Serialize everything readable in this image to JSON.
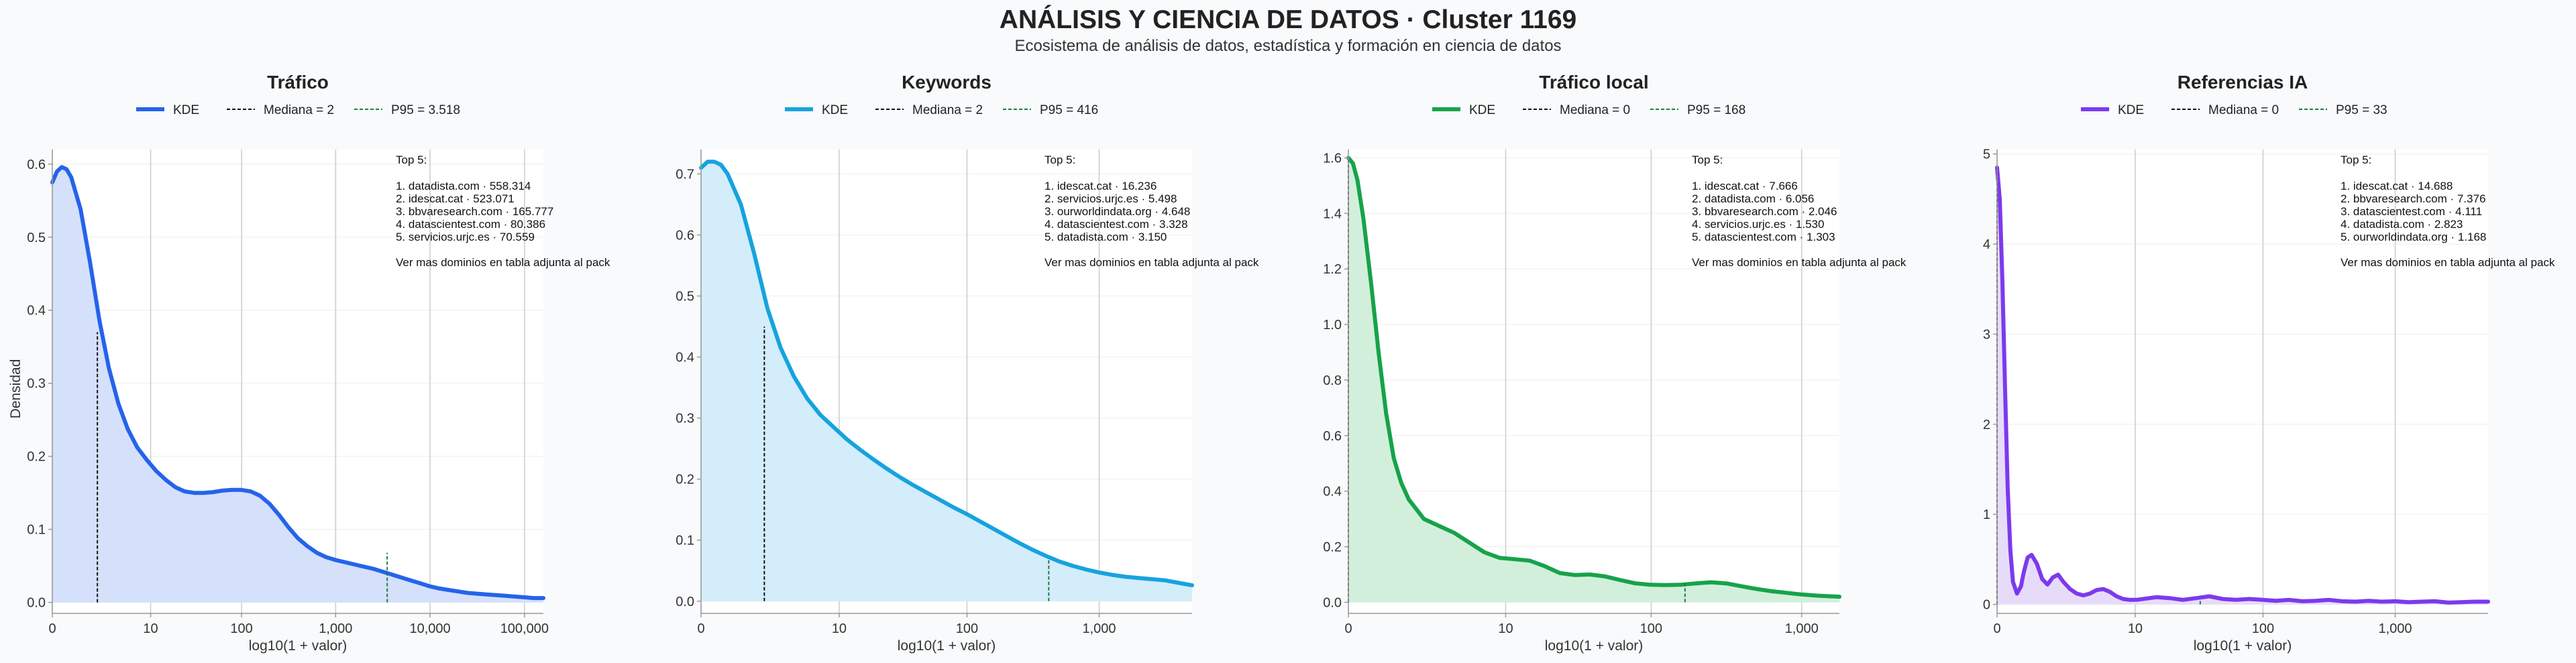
{
  "title": "ANÁLISIS Y CIENCIA DE DATOS · Cluster 1169",
  "subtitle": "Ecosistema de análisis de datos, estadística y formación en ciencia de datos",
  "ylabel": "Densidad",
  "colors": {
    "median": "#111111",
    "p95": "#15803d",
    "grid": "#cfcfcf",
    "axis": "#9a9a9a"
  },
  "chart_data": [
    {
      "type": "area",
      "title": "Tráfico",
      "color": "#2563eb",
      "fill": "#d5e0fb",
      "legend": [
        "KDE",
        "Mediana = 2",
        "P95 = 3.518"
      ],
      "xlabel": "log10(1 + valor)",
      "xlim": [
        0,
        5.2
      ],
      "ylim": [
        -0.015,
        0.62
      ],
      "yticks": [
        0.0,
        0.1,
        0.2,
        0.3,
        0.4,
        0.5,
        0.6
      ],
      "ytick_labels": [
        "0.0",
        "0.1",
        "0.2",
        "0.3",
        "0.4",
        "0.5",
        "0.6"
      ],
      "xticks": [
        0,
        1.041,
        2.004,
        3.0,
        4.0,
        5.0
      ],
      "xtick_labels": [
        "0",
        "10",
        "100",
        "1,000",
        "10,000",
        "100,000"
      ],
      "median_x": 0.477,
      "median_y": 0.37,
      "p95_x": 3.546,
      "p95_y": 0.068,
      "kde_x": [
        0,
        0.05,
        0.1,
        0.15,
        0.2,
        0.3,
        0.4,
        0.5,
        0.6,
        0.7,
        0.8,
        0.9,
        1.0,
        1.1,
        1.2,
        1.3,
        1.4,
        1.5,
        1.6,
        1.7,
        1.8,
        1.9,
        2.0,
        2.1,
        2.2,
        2.3,
        2.4,
        2.5,
        2.6,
        2.7,
        2.8,
        2.9,
        3.0,
        3.1,
        3.2,
        3.3,
        3.4,
        3.5,
        3.6,
        3.7,
        3.8,
        3.9,
        4.0,
        4.1,
        4.2,
        4.3,
        4.4,
        4.5,
        4.6,
        4.7,
        4.8,
        4.9,
        5.0,
        5.1,
        5.2
      ],
      "kde_y": [
        0.575,
        0.59,
        0.596,
        0.593,
        0.582,
        0.538,
        0.465,
        0.385,
        0.32,
        0.272,
        0.237,
        0.212,
        0.195,
        0.18,
        0.168,
        0.158,
        0.152,
        0.15,
        0.15,
        0.151,
        0.153,
        0.154,
        0.154,
        0.152,
        0.146,
        0.135,
        0.12,
        0.103,
        0.088,
        0.077,
        0.068,
        0.062,
        0.058,
        0.055,
        0.052,
        0.049,
        0.046,
        0.042,
        0.038,
        0.034,
        0.03,
        0.026,
        0.022,
        0.019,
        0.017,
        0.015,
        0.013,
        0.012,
        0.011,
        0.01,
        0.009,
        0.008,
        0.007,
        0.006,
        0.006
      ],
      "top_title": "Top 5:",
      "top_lines": [
        "1. datadista.com · 558.314",
        "2. idescat.cat · 523.071",
        "3. bbvaresearch.com · 165.777",
        "4. datascientest.com · 80.386",
        "5. servicios.urjc.es · 70.559"
      ],
      "note": "Ver mas dominios en tabla adjunta al pack"
    },
    {
      "type": "area",
      "title": "Keywords",
      "color": "#16a3df",
      "fill": "#d3edfa",
      "legend": [
        "KDE",
        "Mediana = 2",
        "P95 = 416"
      ],
      "xlabel": "log10(1 + valor)",
      "xlim": [
        0,
        3.7
      ],
      "ylim": [
        -0.02,
        0.74
      ],
      "yticks": [
        0.0,
        0.1,
        0.2,
        0.3,
        0.4,
        0.5,
        0.6,
        0.7
      ],
      "ytick_labels": [
        "0.0",
        "0.1",
        "0.2",
        "0.3",
        "0.4",
        "0.5",
        "0.6",
        "0.7"
      ],
      "xticks": [
        0,
        1.041,
        2.004,
        3.0
      ],
      "xtick_labels": [
        "0",
        "10",
        "100",
        "1,000"
      ],
      "median_x": 0.477,
      "median_y": 0.45,
      "p95_x": 2.62,
      "p95_y": 0.068,
      "kde_x": [
        0,
        0.05,
        0.1,
        0.15,
        0.2,
        0.3,
        0.4,
        0.5,
        0.6,
        0.7,
        0.8,
        0.9,
        1.0,
        1.1,
        1.2,
        1.3,
        1.4,
        1.5,
        1.6,
        1.7,
        1.8,
        1.9,
        2.0,
        2.1,
        2.2,
        2.3,
        2.4,
        2.5,
        2.6,
        2.7,
        2.8,
        2.9,
        3.0,
        3.1,
        3.2,
        3.3,
        3.4,
        3.5,
        3.6,
        3.7
      ],
      "kde_y": [
        0.71,
        0.72,
        0.72,
        0.715,
        0.7,
        0.65,
        0.57,
        0.48,
        0.415,
        0.368,
        0.332,
        0.305,
        0.285,
        0.265,
        0.248,
        0.232,
        0.217,
        0.203,
        0.19,
        0.178,
        0.166,
        0.154,
        0.143,
        0.131,
        0.119,
        0.107,
        0.095,
        0.084,
        0.074,
        0.065,
        0.058,
        0.052,
        0.047,
        0.043,
        0.04,
        0.038,
        0.036,
        0.034,
        0.03,
        0.026
      ],
      "top_title": "Top 5:",
      "top_lines": [
        "1. idescat.cat · 16.236",
        "2. servicios.urjc.es · 5.498",
        "3. ourworldindata.org · 4.648",
        "4. datascientest.com · 3.328",
        "5. datadista.com · 3.150"
      ],
      "note": "Ver mas dominios en tabla adjunta al pack"
    },
    {
      "type": "area",
      "title": "Tráfico local",
      "color": "#16a34a",
      "fill": "#d2efdc",
      "legend": [
        "KDE",
        "Mediana = 0",
        "P95 = 168"
      ],
      "xlabel": "log10(1 + valor)",
      "xlim": [
        0,
        3.25
      ],
      "ylim": [
        -0.04,
        1.63
      ],
      "yticks": [
        0.0,
        0.2,
        0.4,
        0.6,
        0.8,
        1.0,
        1.2,
        1.4,
        1.6
      ],
      "ytick_labels": [
        "0.0",
        "0.2",
        "0.4",
        "0.6",
        "0.8",
        "1.0",
        "1.2",
        "1.4",
        "1.6"
      ],
      "xticks": [
        0,
        1.041,
        2.004,
        3.0
      ],
      "xtick_labels": [
        "0",
        "10",
        "100",
        "1,000"
      ],
      "median_x": 0.0,
      "median_y": 1.6,
      "p95_x": 2.228,
      "p95_y": 0.068,
      "kde_x": [
        0,
        0.03,
        0.06,
        0.1,
        0.15,
        0.2,
        0.25,
        0.3,
        0.35,
        0.4,
        0.5,
        0.6,
        0.7,
        0.8,
        0.9,
        1.0,
        1.1,
        1.2,
        1.3,
        1.4,
        1.5,
        1.6,
        1.7,
        1.8,
        1.9,
        2.0,
        2.1,
        2.2,
        2.3,
        2.4,
        2.5,
        2.6,
        2.7,
        2.8,
        2.9,
        3.0,
        3.1,
        3.25
      ],
      "kde_y": [
        1.6,
        1.58,
        1.52,
        1.38,
        1.15,
        0.9,
        0.68,
        0.52,
        0.43,
        0.37,
        0.3,
        0.275,
        0.25,
        0.215,
        0.18,
        0.16,
        0.155,
        0.15,
        0.13,
        0.105,
        0.098,
        0.1,
        0.093,
        0.08,
        0.068,
        0.063,
        0.062,
        0.063,
        0.068,
        0.072,
        0.068,
        0.058,
        0.048,
        0.04,
        0.034,
        0.028,
        0.024,
        0.02
      ],
      "top_title": "Top 5:",
      "top_lines": [
        "1. idescat.cat · 7.666",
        "2. datadista.com · 6.056",
        "3. bbvaresearch.com · 2.046",
        "4. servicios.urjc.es · 1.530",
        "5. datascientest.com · 1.303"
      ],
      "note": "Ver mas dominios en tabla adjunta al pack"
    },
    {
      "type": "area",
      "title": "Referencias IA",
      "color": "#7c3aed",
      "fill": "#e6dcf9",
      "legend": [
        "KDE",
        "Mediana = 0",
        "P95 = 33"
      ],
      "xlabel": "log10(1 + valor)",
      "xlim": [
        0,
        3.7
      ],
      "ylim": [
        -0.1,
        5.05
      ],
      "yticks": [
        0,
        1,
        2,
        3,
        4,
        5
      ],
      "ytick_labels": [
        "0",
        "1",
        "2",
        "3",
        "4",
        "5"
      ],
      "xticks": [
        0,
        1.041,
        2.004,
        3.0
      ],
      "xtick_labels": [
        "0",
        "10",
        "100",
        "1,000"
      ],
      "median_x": 0.0,
      "median_y": 4.85,
      "p95_x": 1.531,
      "p95_y": 0.04,
      "kde_x": [
        0,
        0.02,
        0.04,
        0.06,
        0.08,
        0.1,
        0.12,
        0.15,
        0.18,
        0.2,
        0.23,
        0.26,
        0.3,
        0.34,
        0.38,
        0.42,
        0.46,
        0.5,
        0.55,
        0.6,
        0.65,
        0.7,
        0.75,
        0.8,
        0.85,
        0.9,
        0.95,
        1.0,
        1.05,
        1.1,
        1.2,
        1.3,
        1.4,
        1.5,
        1.6,
        1.7,
        1.8,
        1.9,
        2.0,
        2.1,
        2.2,
        2.3,
        2.4,
        2.5,
        2.6,
        2.7,
        2.8,
        2.9,
        3.0,
        3.1,
        3.2,
        3.3,
        3.4,
        3.5,
        3.6,
        3.7
      ],
      "kde_y": [
        4.85,
        4.5,
        3.6,
        2.4,
        1.3,
        0.6,
        0.25,
        0.12,
        0.2,
        0.35,
        0.52,
        0.55,
        0.45,
        0.28,
        0.22,
        0.3,
        0.33,
        0.25,
        0.17,
        0.12,
        0.1,
        0.12,
        0.16,
        0.17,
        0.14,
        0.09,
        0.06,
        0.05,
        0.05,
        0.06,
        0.08,
        0.07,
        0.05,
        0.07,
        0.09,
        0.06,
        0.05,
        0.06,
        0.05,
        0.04,
        0.05,
        0.035,
        0.04,
        0.05,
        0.035,
        0.03,
        0.04,
        0.03,
        0.035,
        0.025,
        0.03,
        0.035,
        0.02,
        0.025,
        0.03,
        0.03
      ],
      "top_title": "Top 5:",
      "top_lines": [
        "1. idescat.cat · 14.688",
        "2. bbvaresearch.com · 7.376",
        "3. datascientest.com · 4.111",
        "4. datadista.com · 2.823",
        "5. ourworldindata.org · 1.168"
      ],
      "note": "Ver mas dominios en tabla adjunta al pack"
    }
  ]
}
